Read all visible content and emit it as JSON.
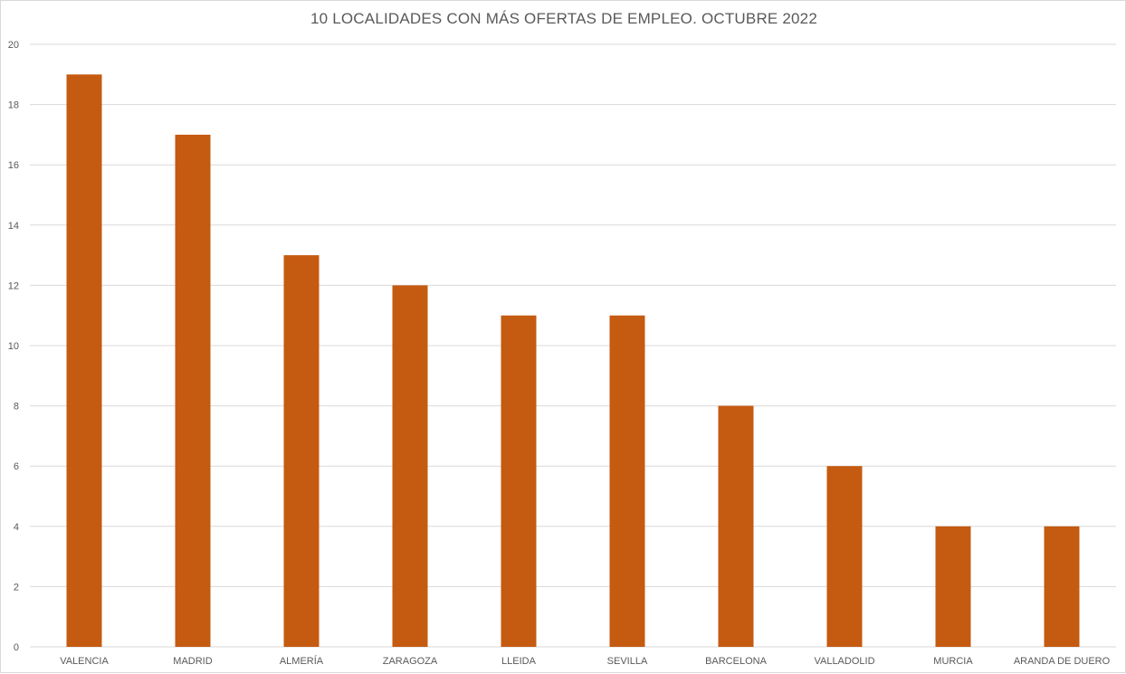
{
  "chart_data": {
    "type": "bar",
    "title": "10 LOCALIDADES CON MÁS OFERTAS DE EMPLEO. OCTUBRE 2022",
    "categories": [
      "VALENCIA",
      "MADRID",
      "ALMERÍA",
      "ZARAGOZA",
      "LLEIDA",
      "SEVILLA",
      "BARCELONA",
      "VALLADOLID",
      "MURCIA",
      "ARANDA DE DUERO"
    ],
    "values": [
      19,
      17,
      13,
      12,
      11,
      11,
      8,
      6,
      4,
      4
    ],
    "xlabel": "",
    "ylabel": "",
    "ylim": [
      0,
      20
    ],
    "yticks": [
      0,
      2,
      4,
      6,
      8,
      10,
      12,
      14,
      16,
      18,
      20
    ],
    "grid": true,
    "legend": "none",
    "bar_color": "#c55a11",
    "grid_color": "#d9d9d9"
  }
}
